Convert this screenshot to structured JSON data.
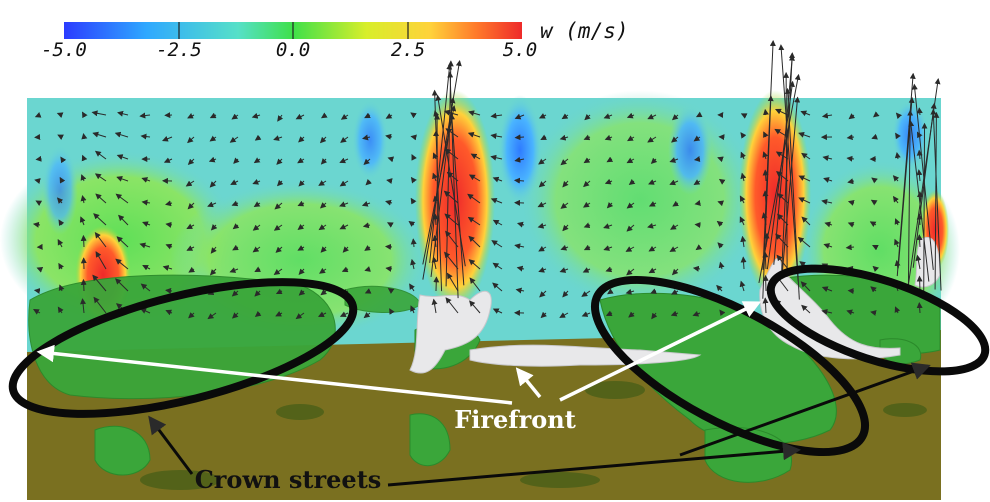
{
  "colorbar": {
    "title": "w (m/s)",
    "ticks": [
      "-5.0",
      "-2.5",
      "0.0",
      "2.5",
      "5.0"
    ],
    "range": [
      -5.0,
      5.0
    ],
    "colors": [
      "#2b3cff",
      "#2fa8ff",
      "#56e0c8",
      "#3fe04a",
      "#d8ee2a",
      "#ffd23a",
      "#ff7a2a",
      "#ee2a2a"
    ]
  },
  "annotations": {
    "firefront": "Firefront",
    "crown_streets": "Crown streets"
  },
  "scene": {
    "sky_color": "#6bd6d0",
    "ground_color": "#7a7020",
    "canopy_color": "#3aa63a",
    "fire_surface_color": "#e8e8ea",
    "vector_color": "#2a2a2a"
  }
}
